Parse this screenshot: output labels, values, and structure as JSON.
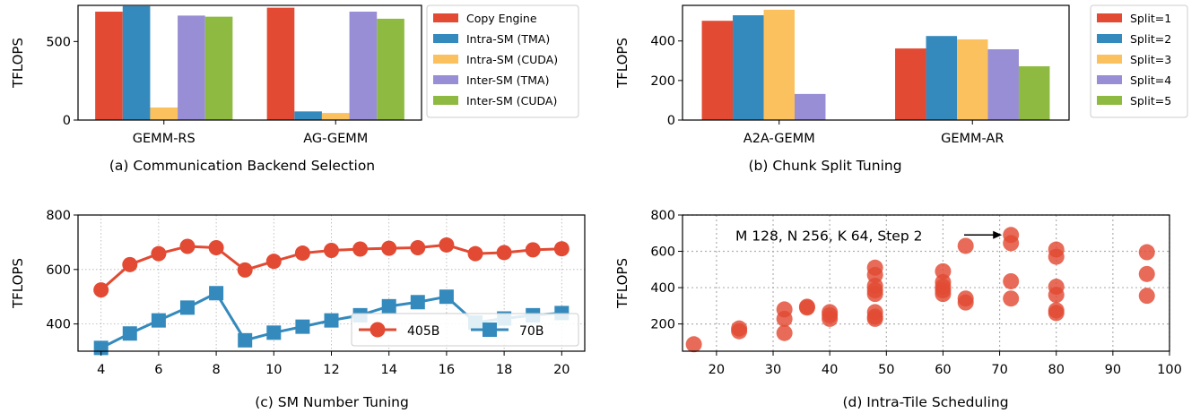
{
  "colors": {
    "red": "#e24a33",
    "blue": "#348abd",
    "orange": "#fbc15e",
    "purple": "#988ed5",
    "green": "#8eba42",
    "scatter": "#e24a33",
    "grid": "#b0b0b0"
  },
  "chart_data": [
    {
      "id": "a",
      "type": "bar",
      "caption": "(a) Communication Backend Selection",
      "ylabel": "TFLOPS",
      "ylim": [
        0,
        730
      ],
      "yticks": [
        0,
        500
      ],
      "categories": [
        "GEMM-RS",
        "AG-GEMM"
      ],
      "series": [
        {
          "name": "Copy Engine",
          "values": [
            690,
            715
          ]
        },
        {
          "name": "Intra-SM (TMA)",
          "values": [
            725,
            55
          ]
        },
        {
          "name": "Intra-SM (CUDA)",
          "values": [
            80,
            45
          ]
        },
        {
          "name": "Inter-SM (TMA)",
          "values": [
            665,
            690
          ]
        },
        {
          "name": "Inter-SM (CUDA)",
          "values": [
            658,
            645
          ]
        }
      ],
      "legend": "right"
    },
    {
      "id": "b",
      "type": "bar",
      "caption": "(b) Chunk Split Tuning",
      "ylabel": "TFLOPS",
      "ylim": [
        0,
        580
      ],
      "yticks": [
        0,
        200,
        400
      ],
      "categories": [
        "A2A-GEMM",
        "GEMM-AR"
      ],
      "series": [
        {
          "name": "Split=1",
          "values": [
            502,
            362
          ]
        },
        {
          "name": "Split=2",
          "values": [
            530,
            425
          ]
        },
        {
          "name": "Split=3",
          "values": [
            558,
            408
          ]
        },
        {
          "name": "Split=4",
          "values": [
            132,
            358
          ]
        },
        {
          "name": "Split=5",
          "values": [
            0,
            272
          ]
        }
      ],
      "legend": "right"
    },
    {
      "id": "c",
      "type": "line",
      "caption": "(c) SM Number Tuning",
      "ylabel": "TFLOPS",
      "xlim": [
        3.2,
        20.8
      ],
      "ylim": [
        300,
        800
      ],
      "xticks": [
        4,
        6,
        8,
        10,
        12,
        14,
        16,
        18,
        20
      ],
      "yticks": [
        400,
        600,
        800
      ],
      "x": [
        4,
        5,
        6,
        7,
        8,
        9,
        10,
        11,
        12,
        13,
        14,
        15,
        16,
        17,
        18,
        19,
        20
      ],
      "series": [
        {
          "name": "405B",
          "values": [
            525,
            618,
            658,
            685,
            680,
            598,
            630,
            660,
            670,
            675,
            678,
            680,
            690,
            658,
            662,
            672,
            676
          ]
        },
        {
          "name": "70B",
          "values": [
            312,
            365,
            413,
            460,
            513,
            340,
            368,
            390,
            413,
            432,
            465,
            480,
            500,
            405,
            420,
            432,
            440
          ]
        }
      ],
      "grid": true,
      "legend": "lower right"
    },
    {
      "id": "d",
      "type": "scatter",
      "caption": "(d) Intra-Tile Scheduling",
      "ylabel": "TFLOPS",
      "xlim": [
        14,
        100
      ],
      "ylim": [
        50,
        800
      ],
      "xticks": [
        20,
        30,
        40,
        50,
        60,
        70,
        80,
        90,
        100
      ],
      "yticks": [
        200,
        400,
        600,
        800
      ],
      "points": [
        [
          16,
          88
        ],
        [
          24,
          175
        ],
        [
          24,
          160
        ],
        [
          32,
          280
        ],
        [
          32,
          228
        ],
        [
          32,
          150
        ],
        [
          36,
          295
        ],
        [
          36,
          290
        ],
        [
          40,
          265
        ],
        [
          40,
          248
        ],
        [
          40,
          228
        ],
        [
          48,
          510
        ],
        [
          48,
          470
        ],
        [
          48,
          410
        ],
        [
          48,
          385
        ],
        [
          48,
          365
        ],
        [
          48,
          265
        ],
        [
          48,
          240
        ],
        [
          48,
          228
        ],
        [
          60,
          490
        ],
        [
          60,
          430
        ],
        [
          60,
          405
        ],
        [
          60,
          385
        ],
        [
          60,
          365
        ],
        [
          64,
          630
        ],
        [
          64,
          340
        ],
        [
          64,
          318
        ],
        [
          72,
          690
        ],
        [
          72,
          645
        ],
        [
          72,
          435
        ],
        [
          72,
          340
        ],
        [
          80,
          610
        ],
        [
          80,
          570
        ],
        [
          80,
          405
        ],
        [
          80,
          360
        ],
        [
          80,
          275
        ],
        [
          80,
          260
        ],
        [
          96,
          595
        ],
        [
          96,
          475
        ],
        [
          96,
          355
        ]
      ],
      "annotation": {
        "text": "M 128, N 256, K 64, Step 2",
        "x": 72,
        "y": 690
      },
      "grid": true
    }
  ]
}
